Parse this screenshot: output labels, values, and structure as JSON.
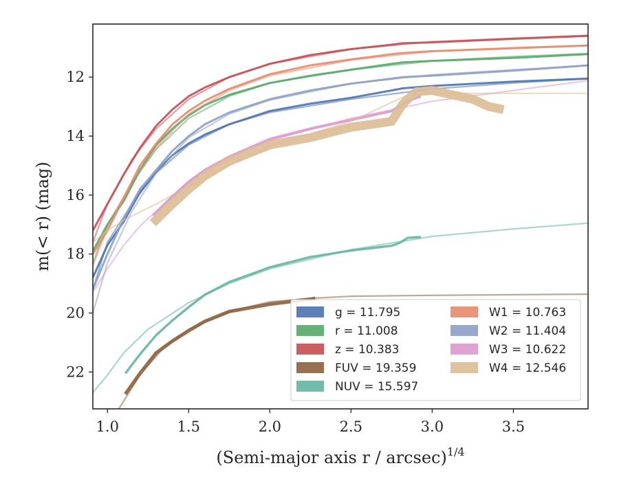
{
  "chart_data": {
    "type": "line",
    "xlabel": "(Semi-major axis r / arcsec)",
    "xlabel_exponent": "1/4",
    "ylabel": "m(< r) (mag)",
    "xlim": [
      0.91,
      3.96
    ],
    "ylim": [
      23.25,
      10.2
    ],
    "y_inverted": true,
    "x_ticks": [
      1.0,
      1.5,
      2.0,
      2.5,
      3.0,
      3.5
    ],
    "x_tick_labels": [
      "1.0",
      "1.5",
      "2.0",
      "2.5",
      "3.0",
      "3.5"
    ],
    "y_ticks": [
      12,
      14,
      16,
      18,
      20,
      22
    ],
    "y_tick_labels": [
      "12",
      "14",
      "16",
      "18",
      "20",
      "22"
    ],
    "grid": false,
    "legend_position": "bottom-right",
    "series": [
      {
        "name": "g",
        "legend_label": "g = 11.795",
        "color": "#4c72b0",
        "band_width": 0.07,
        "values": [
          [
            0.91,
            18.8
          ],
          [
            1.0,
            17.7
          ],
          [
            1.1,
            16.9
          ],
          [
            1.2,
            15.9
          ],
          [
            1.3,
            15.2
          ],
          [
            1.4,
            14.65
          ],
          [
            1.5,
            14.25
          ],
          [
            1.6,
            13.95
          ],
          [
            1.75,
            13.6
          ],
          [
            2.0,
            13.15
          ],
          [
            2.25,
            12.9
          ],
          [
            2.5,
            12.7
          ],
          [
            2.75,
            12.45
          ],
          [
            2.82,
            12.38
          ],
          [
            3.0,
            12.3
          ],
          [
            3.5,
            12.15
          ],
          [
            3.96,
            12.05
          ]
        ],
        "model": [
          [
            0.91,
            19.2
          ],
          [
            1.0,
            17.6
          ],
          [
            1.15,
            16.3
          ],
          [
            1.3,
            15.25
          ],
          [
            1.5,
            14.3
          ],
          [
            1.75,
            13.6
          ],
          [
            2.0,
            13.2
          ],
          [
            2.5,
            12.75
          ],
          [
            3.0,
            12.4
          ],
          [
            3.5,
            12.2
          ],
          [
            3.96,
            12.05
          ]
        ]
      },
      {
        "name": "r",
        "legend_label": "r = 11.008",
        "color": "#55a868",
        "band_width": 0.07,
        "values": [
          [
            0.91,
            17.9
          ],
          [
            1.0,
            17.0
          ],
          [
            1.1,
            16.2
          ],
          [
            1.2,
            15.15
          ],
          [
            1.3,
            14.3
          ],
          [
            1.4,
            13.75
          ],
          [
            1.5,
            13.3
          ],
          [
            1.6,
            12.95
          ],
          [
            1.75,
            12.6
          ],
          [
            2.0,
            12.2
          ],
          [
            2.25,
            11.95
          ],
          [
            2.5,
            11.75
          ],
          [
            2.75,
            11.55
          ],
          [
            2.82,
            11.5
          ],
          [
            3.0,
            11.45
          ],
          [
            3.5,
            11.35
          ],
          [
            3.96,
            11.22
          ]
        ],
        "model": [
          [
            0.91,
            18.3
          ],
          [
            1.0,
            17.0
          ],
          [
            1.15,
            15.6
          ],
          [
            1.3,
            14.45
          ],
          [
            1.5,
            13.4
          ],
          [
            1.75,
            12.65
          ],
          [
            2.0,
            12.2
          ],
          [
            2.5,
            11.75
          ],
          [
            3.0,
            11.45
          ],
          [
            3.5,
            11.3
          ],
          [
            3.96,
            11.2
          ]
        ]
      },
      {
        "name": "z",
        "legend_label": "z = 10.383",
        "color": "#c44e52",
        "band_width": 0.07,
        "values": [
          [
            0.91,
            17.2
          ],
          [
            1.0,
            16.3
          ],
          [
            1.1,
            15.3
          ],
          [
            1.2,
            14.4
          ],
          [
            1.3,
            13.65
          ],
          [
            1.4,
            13.1
          ],
          [
            1.5,
            12.65
          ],
          [
            1.6,
            12.35
          ],
          [
            1.75,
            12.0
          ],
          [
            2.0,
            11.55
          ],
          [
            2.25,
            11.25
          ],
          [
            2.5,
            11.05
          ],
          [
            2.75,
            10.9
          ],
          [
            2.82,
            10.85
          ],
          [
            3.0,
            10.82
          ],
          [
            3.5,
            10.7
          ],
          [
            3.96,
            10.6
          ]
        ],
        "model": [
          [
            0.91,
            17.6
          ],
          [
            1.0,
            16.3
          ],
          [
            1.15,
            14.8
          ],
          [
            1.3,
            13.75
          ],
          [
            1.5,
            12.75
          ],
          [
            1.75,
            12.0
          ],
          [
            2.0,
            11.55
          ],
          [
            2.5,
            11.05
          ],
          [
            3.0,
            10.8
          ],
          [
            3.5,
            10.68
          ],
          [
            3.96,
            10.58
          ]
        ]
      },
      {
        "name": "FUV",
        "legend_label": "FUV = 19.359",
        "color": "#8c613c",
        "band_width": 0.12,
        "values": [
          [
            1.11,
            22.75
          ],
          [
            1.2,
            22.05
          ],
          [
            1.3,
            21.35
          ],
          [
            1.4,
            20.95
          ],
          [
            1.5,
            20.6
          ],
          [
            1.6,
            20.28
          ],
          [
            1.75,
            19.95
          ],
          [
            2.0,
            19.7
          ],
          [
            2.25,
            19.53
          ],
          [
            2.28,
            19.5
          ]
        ],
        "model": [
          [
            1.07,
            23.25
          ],
          [
            1.2,
            22.1
          ],
          [
            1.35,
            21.15
          ],
          [
            1.5,
            20.55
          ],
          [
            1.75,
            19.95
          ],
          [
            2.0,
            19.62
          ],
          [
            2.25,
            19.5
          ],
          [
            2.5,
            19.43
          ],
          [
            3.0,
            19.4
          ],
          [
            3.5,
            19.38
          ],
          [
            3.96,
            19.36
          ]
        ]
      },
      {
        "name": "NUV",
        "legend_label": "NUV = 15.597",
        "color": "#64b5a0",
        "band_width": 0.08,
        "values": [
          [
            1.11,
            22.05
          ],
          [
            1.2,
            21.4
          ],
          [
            1.3,
            20.75
          ],
          [
            1.4,
            20.25
          ],
          [
            1.5,
            19.8
          ],
          [
            1.6,
            19.38
          ],
          [
            1.75,
            18.95
          ],
          [
            2.0,
            18.45
          ],
          [
            2.25,
            18.1
          ],
          [
            2.5,
            17.88
          ],
          [
            2.75,
            17.72
          ],
          [
            2.8,
            17.62
          ],
          [
            2.85,
            17.45
          ],
          [
            2.93,
            17.42
          ]
        ],
        "model": [
          [
            0.91,
            22.7
          ],
          [
            1.0,
            22.1
          ],
          [
            1.1,
            21.35
          ],
          [
            1.25,
            20.55
          ],
          [
            1.5,
            19.65
          ],
          [
            1.75,
            19.0
          ],
          [
            2.0,
            18.5
          ],
          [
            2.5,
            17.85
          ],
          [
            3.0,
            17.4
          ],
          [
            3.5,
            17.15
          ],
          [
            3.96,
            16.95
          ]
        ]
      },
      {
        "name": "W1",
        "legend_label": "W1 = 10.763",
        "color": "#e8896a",
        "band_width": 0.07,
        "values": [
          [
            0.91,
            18.0
          ],
          [
            1.0,
            17.2
          ],
          [
            1.1,
            16.1
          ],
          [
            1.2,
            15.0
          ],
          [
            1.3,
            14.25
          ],
          [
            1.4,
            13.6
          ],
          [
            1.5,
            13.15
          ],
          [
            1.6,
            12.8
          ],
          [
            1.75,
            12.4
          ],
          [
            2.0,
            11.9
          ],
          [
            2.25,
            11.6
          ],
          [
            2.5,
            11.4
          ],
          [
            2.75,
            11.22
          ],
          [
            2.82,
            11.18
          ],
          [
            3.0,
            11.12
          ],
          [
            3.5,
            11.02
          ],
          [
            3.96,
            10.93
          ]
        ],
        "model": [
          [
            0.91,
            18.4
          ],
          [
            1.0,
            17.1
          ],
          [
            1.15,
            15.55
          ],
          [
            1.3,
            14.4
          ],
          [
            1.5,
            13.25
          ],
          [
            1.75,
            12.45
          ],
          [
            2.0,
            11.95
          ],
          [
            2.5,
            11.42
          ],
          [
            3.0,
            11.12
          ],
          [
            3.5,
            11.0
          ],
          [
            3.96,
            10.92
          ]
        ]
      },
      {
        "name": "W2",
        "legend_label": "W2 = 11.404",
        "color": "#8c9ec6",
        "band_width": 0.07,
        "values": [
          [
            0.91,
            19.2
          ],
          [
            1.0,
            18.0
          ],
          [
            1.1,
            16.8
          ],
          [
            1.2,
            15.8
          ],
          [
            1.3,
            15.15
          ],
          [
            1.4,
            14.5
          ],
          [
            1.5,
            14.0
          ],
          [
            1.6,
            13.6
          ],
          [
            1.75,
            13.2
          ],
          [
            2.0,
            12.75
          ],
          [
            2.25,
            12.45
          ],
          [
            2.5,
            12.22
          ],
          [
            2.75,
            12.05
          ],
          [
            2.82,
            12.0
          ],
          [
            3.0,
            11.95
          ],
          [
            3.5,
            11.78
          ],
          [
            3.96,
            11.6
          ]
        ],
        "model": [
          [
            0.91,
            20.0
          ],
          [
            1.0,
            18.3
          ],
          [
            1.15,
            16.55
          ],
          [
            1.3,
            15.25
          ],
          [
            1.5,
            14.05
          ],
          [
            1.75,
            13.25
          ],
          [
            2.0,
            12.78
          ],
          [
            2.5,
            12.22
          ],
          [
            3.0,
            11.92
          ],
          [
            3.5,
            11.75
          ],
          [
            3.96,
            11.6
          ]
        ]
      },
      {
        "name": "W3",
        "legend_label": "W3 = 10.622",
        "color": "#dd99cc",
        "band_width": 0.09,
        "values": [
          [
            1.28,
            16.7
          ],
          [
            1.4,
            16.05
          ],
          [
            1.5,
            15.55
          ],
          [
            1.6,
            15.15
          ],
          [
            1.75,
            14.7
          ],
          [
            2.0,
            14.1
          ],
          [
            2.25,
            13.75
          ],
          [
            2.5,
            13.45
          ],
          [
            2.75,
            13.15
          ],
          [
            2.85,
            12.8
          ],
          [
            2.93,
            12.65
          ]
        ],
        "model": [
          [
            0.91,
            19.3
          ],
          [
            1.0,
            18.5
          ],
          [
            1.1,
            17.7
          ],
          [
            1.2,
            17.05
          ],
          [
            1.3,
            16.55
          ],
          [
            1.5,
            15.55
          ],
          [
            1.75,
            14.75
          ],
          [
            2.0,
            14.15
          ],
          [
            2.5,
            13.4
          ],
          [
            3.0,
            12.82
          ],
          [
            3.5,
            12.45
          ],
          [
            3.96,
            12.12
          ]
        ]
      },
      {
        "name": "W4",
        "legend_label": "W4 = 12.546",
        "color": "#dcbb93",
        "band_width": 0.3,
        "values": [
          [
            1.28,
            16.95
          ],
          [
            1.4,
            16.3
          ],
          [
            1.5,
            15.8
          ],
          [
            1.6,
            15.35
          ],
          [
            1.75,
            14.85
          ],
          [
            2.0,
            14.3
          ],
          [
            2.25,
            14.05
          ],
          [
            2.5,
            13.7
          ],
          [
            2.75,
            13.5
          ],
          [
            2.82,
            12.9
          ],
          [
            2.9,
            12.5
          ],
          [
            3.0,
            12.45
          ],
          [
            3.25,
            12.75
          ],
          [
            3.35,
            13.0
          ],
          [
            3.44,
            13.1
          ]
        ],
        "model": [
          [
            0.91,
            17.6
          ],
          [
            1.0,
            17.2
          ],
          [
            1.1,
            16.85
          ],
          [
            1.3,
            16.3
          ],
          [
            1.5,
            15.7
          ],
          [
            1.75,
            15.0
          ],
          [
            2.0,
            14.35
          ],
          [
            2.5,
            13.5
          ],
          [
            2.85,
            12.6
          ],
          [
            3.0,
            12.55
          ],
          [
            3.5,
            12.55
          ],
          [
            3.96,
            12.55
          ]
        ]
      }
    ]
  }
}
